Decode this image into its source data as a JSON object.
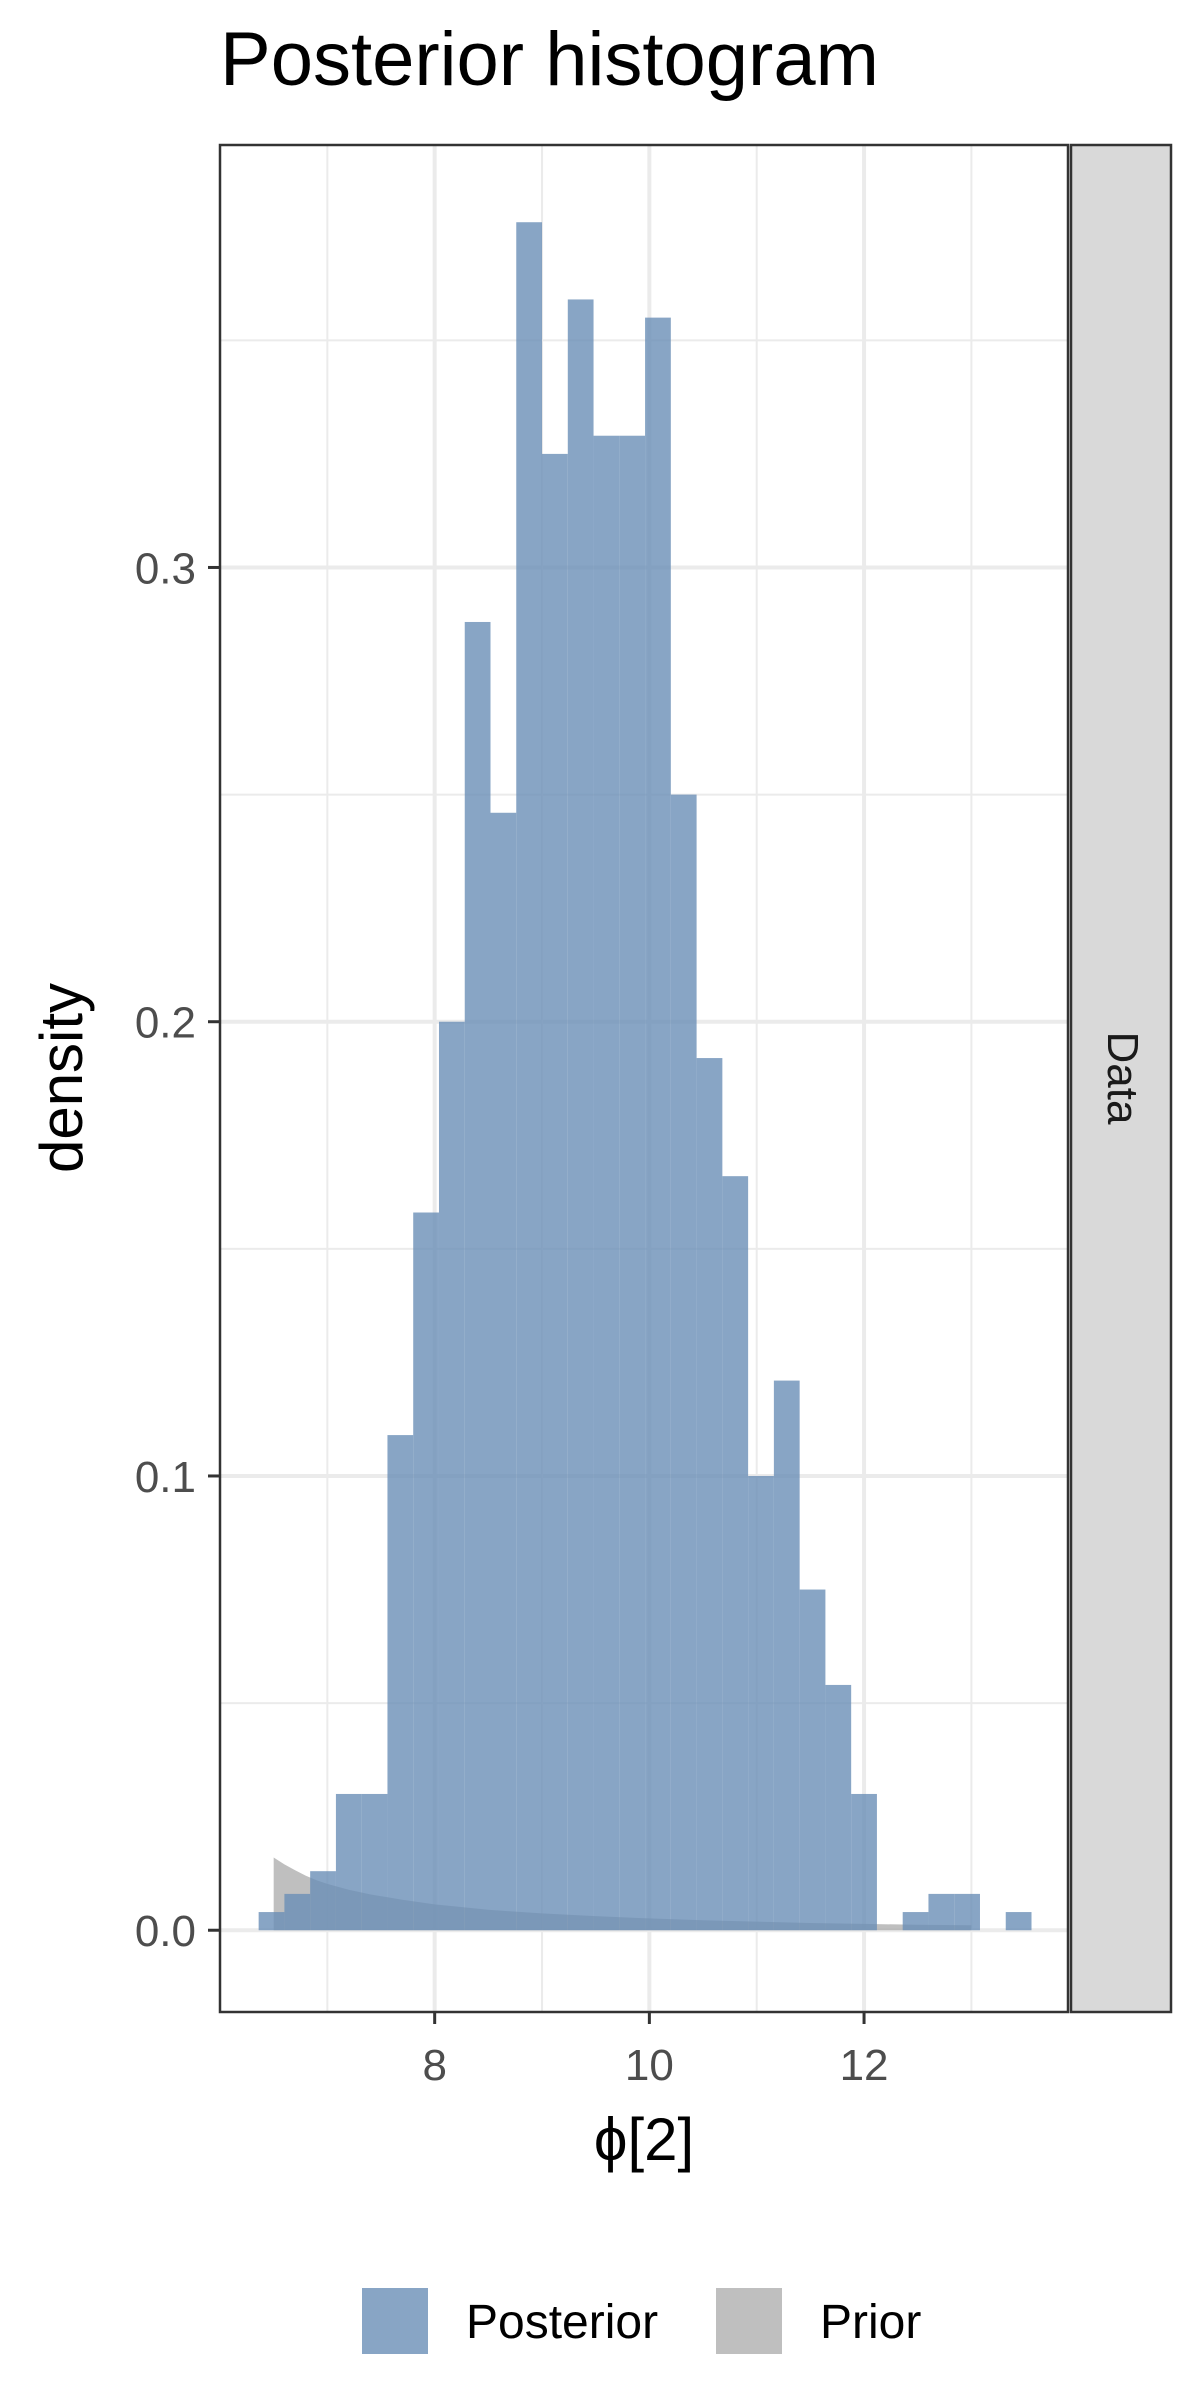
{
  "chart_data": {
    "type": "bar",
    "title": "Posterior histogram",
    "xlabel": "ϕ[2]",
    "ylabel": "density",
    "facet_label": "Data",
    "xlim": [
      6.0,
      13.9
    ],
    "ylim": [
      -0.018,
      0.393
    ],
    "x_ticks": [
      8,
      10,
      12
    ],
    "x_tick_labels": [
      "8",
      "10",
      "12"
    ],
    "y_ticks": [
      0.0,
      0.1,
      0.2,
      0.3
    ],
    "y_tick_labels": [
      "0.0",
      "0.1",
      "0.2",
      "0.3"
    ],
    "grid": true,
    "legend_position": "bottom",
    "colors": {
      "posterior": "#6a8fb7",
      "prior": "#a9a9a9",
      "panel_border": "#333333",
      "grid": "#ebebeb",
      "strip": "#d9d9d9"
    },
    "series": [
      {
        "name": "Posterior",
        "bin_width": 0.24,
        "x_start": [
          6.36,
          6.6,
          6.84,
          7.08,
          7.32,
          7.56,
          7.8,
          8.04,
          8.28,
          8.52,
          8.76,
          9.0,
          9.24,
          9.48,
          9.72,
          9.96,
          10.2,
          10.44,
          10.68,
          10.92,
          11.16,
          11.4,
          11.64,
          11.88,
          12.12,
          12.36,
          12.6,
          12.84,
          13.08,
          13.32
        ],
        "values": [
          0.004,
          0.008,
          0.013,
          0.03,
          0.03,
          0.109,
          0.158,
          0.2,
          0.288,
          0.246,
          0.376,
          0.325,
          0.359,
          0.329,
          0.329,
          0.355,
          0.25,
          0.192,
          0.166,
          0.1,
          0.121,
          0.075,
          0.054,
          0.03,
          0.0,
          0.004,
          0.008,
          0.008,
          0.0,
          0.004
        ]
      },
      {
        "name": "Prior",
        "x": [
          6.5,
          6.6,
          6.7,
          6.8,
          6.9,
          7.0,
          7.2,
          7.4,
          7.7,
          8.0,
          8.5,
          9.0,
          9.5,
          10.0,
          10.5,
          11.0,
          11.5,
          12.0,
          12.5,
          13.0
        ],
        "values": [
          0.016,
          0.0145,
          0.0132,
          0.012,
          0.011,
          0.0102,
          0.0089,
          0.0079,
          0.0067,
          0.0057,
          0.0045,
          0.0037,
          0.0031,
          0.0026,
          0.0022,
          0.0019,
          0.0016,
          0.0014,
          0.0012,
          0.0011
        ]
      }
    ]
  }
}
